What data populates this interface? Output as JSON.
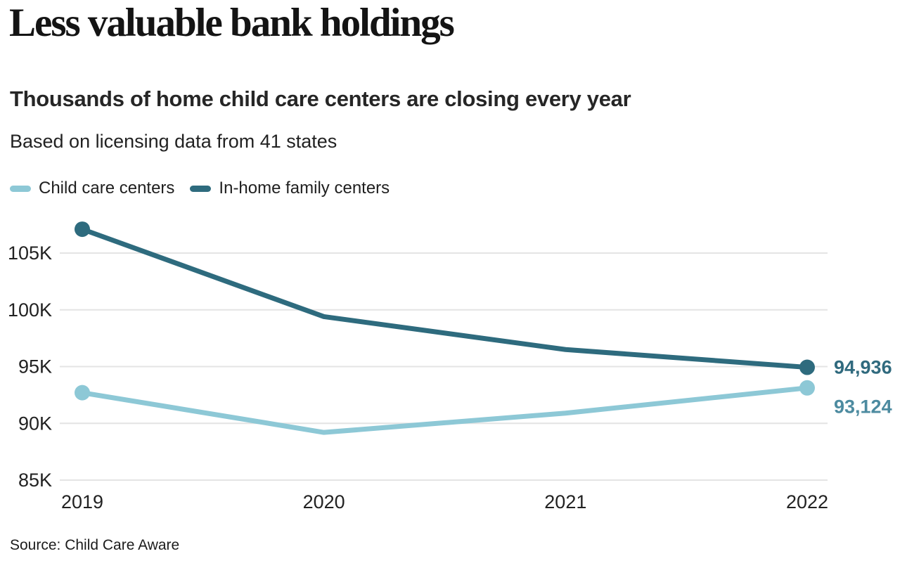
{
  "header": {
    "title": "Less valuable bank holdings",
    "subtitle": "Thousands of home child care centers are closing every year",
    "note": "Based on licensing data from 41 states"
  },
  "legend": {
    "items": [
      {
        "label": "Child care centers",
        "color": "#8dc8d6"
      },
      {
        "label": "In-home family centers",
        "color": "#2e6b7e"
      }
    ]
  },
  "chart_data": {
    "type": "line",
    "title": "Less valuable bank holdings",
    "subtitle": "Thousands of home child care centers are closing every year",
    "note": "Based on licensing data from 41 states",
    "x": [
      "2019",
      "2020",
      "2021",
      "2022"
    ],
    "series": [
      {
        "name": "In-home family centers",
        "color": "#2e6b7e",
        "values": [
          107100,
          99400,
          96500,
          94936
        ],
        "end_label": "94,936",
        "end_label_color": "#306a7e"
      },
      {
        "name": "Child care centers",
        "color": "#8dc8d6",
        "values": [
          92700,
          89200,
          90900,
          93124
        ],
        "end_label": "93,124",
        "end_label_color": "#4d8ba0"
      }
    ],
    "yticks": [
      {
        "value": 105000,
        "label": "105K"
      },
      {
        "value": 100000,
        "label": "100K"
      },
      {
        "value": 95000,
        "label": "95K"
      },
      {
        "value": 90000,
        "label": "90K"
      },
      {
        "value": 85000,
        "label": "85K"
      }
    ],
    "ylim": [
      85000,
      108500
    ],
    "grid": true,
    "legend_position": "top",
    "xlabel": "",
    "ylabel": ""
  },
  "footer": {
    "source": "Source: Child Care Aware"
  }
}
